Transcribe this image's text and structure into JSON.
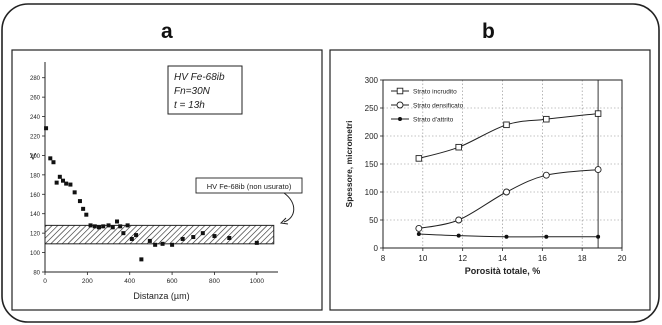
{
  "panels": {
    "a": "a",
    "b": "b"
  },
  "chart_data": [
    {
      "panel": "a",
      "type": "scatter",
      "ylabel": "V",
      "xlabel": "Distanza (µm)",
      "xlim": [
        0,
        1100
      ],
      "ylim": [
        80,
        290
      ],
      "xticks": [
        0,
        200,
        400,
        600,
        800,
        1000
      ],
      "yticks": [
        80,
        100,
        120,
        140,
        160,
        180,
        200,
        220,
        240,
        260,
        280
      ],
      "annotation_lines": [
        "HV Fe-68ib",
        "Fn=30N",
        "t = 13h"
      ],
      "band": {
        "label": "HV Fe-68ib (non usurato)",
        "y_range": [
          109,
          128
        ],
        "x_range": [
          0,
          1080
        ]
      },
      "points": [
        [
          5,
          228
        ],
        [
          25,
          197
        ],
        [
          40,
          193
        ],
        [
          55,
          172
        ],
        [
          70,
          178
        ],
        [
          85,
          174
        ],
        [
          100,
          171
        ],
        [
          120,
          170
        ],
        [
          140,
          162
        ],
        [
          165,
          153
        ],
        [
          180,
          145
        ],
        [
          195,
          139
        ],
        [
          215,
          128
        ],
        [
          235,
          127
        ],
        [
          255,
          126
        ],
        [
          275,
          127
        ],
        [
          300,
          128
        ],
        [
          320,
          126
        ],
        [
          340,
          132
        ],
        [
          355,
          127
        ],
        [
          370,
          120
        ],
        [
          390,
          128
        ],
        [
          410,
          114
        ],
        [
          430,
          118
        ],
        [
          455,
          93
        ],
        [
          495,
          112
        ],
        [
          520,
          108
        ],
        [
          555,
          109
        ],
        [
          600,
          108
        ],
        [
          650,
          114
        ],
        [
          700,
          116
        ],
        [
          745,
          120
        ],
        [
          800,
          117
        ],
        [
          870,
          115
        ],
        [
          1000,
          110
        ]
      ]
    },
    {
      "panel": "b",
      "type": "line",
      "xlabel": "Porosità totale, %",
      "ylabel": "Spessore, micrometri",
      "xlim": [
        8,
        20
      ],
      "ylim": [
        0,
        300
      ],
      "xticks": [
        8,
        10,
        12,
        14,
        16,
        18,
        20
      ],
      "yticks": [
        0,
        50,
        100,
        150,
        200,
        250,
        300
      ],
      "x": [
        9.8,
        11.8,
        14.2,
        16.2,
        18.8
      ],
      "series": [
        {
          "name": "Strato incrudito",
          "marker": "square",
          "values": [
            160,
            180,
            220,
            230,
            240
          ]
        },
        {
          "name": "Strato densificato",
          "marker": "circle",
          "values": [
            35,
            50,
            100,
            130,
            140
          ]
        },
        {
          "name": "Strato d'attrito",
          "marker": "dot",
          "values": [
            25,
            22,
            20,
            20,
            20
          ]
        }
      ],
      "legend_position": "top-left"
    }
  ]
}
